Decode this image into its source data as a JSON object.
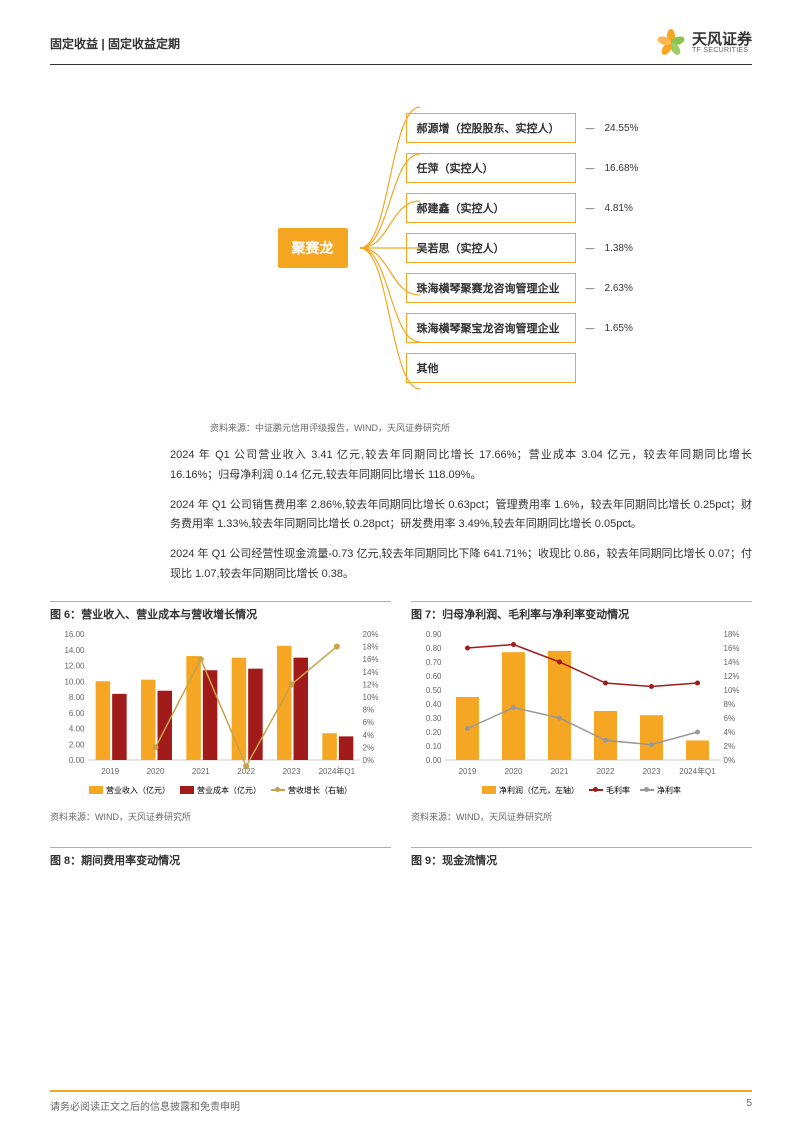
{
  "header": {
    "category": "固定收益 | 固定收益定期",
    "logo_cn": "天风证券",
    "logo_en": "TF SECURITIES"
  },
  "org": {
    "root": "聚赛龙",
    "nodes": [
      {
        "label": "郝源增（控股股东、实控人）",
        "pct": "24.55%"
      },
      {
        "label": "任萍（实控人）",
        "pct": "16.68%"
      },
      {
        "label": "郝建鑫（实控人）",
        "pct": "4.81%"
      },
      {
        "label": "吴若思（实控人）",
        "pct": "1.38%"
      },
      {
        "label": "珠海横琴聚赛龙咨询管理企业",
        "pct": "2.63%"
      },
      {
        "label": "珠海横琴聚宝龙咨询管理企业",
        "pct": "1.65%"
      },
      {
        "label": "其他",
        "pct": ""
      }
    ],
    "source": "资料来源：中证鹏元信用评级报告，WIND，天风证券研究所"
  },
  "paragraphs": {
    "p1": "2024 年 Q1 公司营业收入 3.41 亿元,较去年同期同比增长 17.66%；营业成本 3.04 亿元，较去年同期同比增长 16.16%；归母净利润 0.14 亿元,较去年同期同比增长 118.09%。",
    "p2": "2024 年 Q1 公司销售费用率 2.86%,较去年同期同比增长 0.63pct；管理费用率 1.6%，较去年同期同比增长 0.25pct；财务费用率 1.33%,较去年同期同比增长 0.28pct；研发费用率 3.49%,较去年同期同比增长 0.05pct。",
    "p3": "2024 年 Q1 公司经营性现金流量-0.73 亿元,较去年同期同比下降 641.71%；收现比 0.86，较去年同期同比增长 0.07；付现比 1.07,较去年同期同比增长 0.38。"
  },
  "chart6": {
    "title": "图 6：营业收入、营业成本与营收增长情况",
    "type": "bar+line",
    "categories": [
      "2019",
      "2020",
      "2021",
      "2022",
      "2023",
      "2024年Q1"
    ],
    "revenue": [
      10.0,
      10.2,
      13.2,
      13.0,
      14.5,
      3.4
    ],
    "cost": [
      8.4,
      8.8,
      11.4,
      11.6,
      13.0,
      3.0
    ],
    "growth_pct": [
      null,
      2,
      16,
      -1,
      12,
      18
    ],
    "left_ylim": [
      0,
      16
    ],
    "left_step": 2,
    "right_ylim": [
      0,
      20
    ],
    "right_step": 2,
    "colors": {
      "revenue": "#f5a623",
      "cost": "#a11b1b",
      "growth": "#c9a24a",
      "axis": "#999999"
    },
    "legend": {
      "rev": "营业收入（亿元）",
      "cost": "营业成本（亿元）",
      "growth": "营收增长（右轴）"
    },
    "source": "资料来源：WIND，天风证券研究所"
  },
  "chart7": {
    "title": "图 7：归母净利润、毛利率与净利率变动情况",
    "type": "bar+line",
    "categories": [
      "2019",
      "2020",
      "2021",
      "2022",
      "2023",
      "2024年Q1"
    ],
    "netprofit": [
      0.45,
      0.77,
      0.78,
      0.35,
      0.32,
      0.14
    ],
    "gross_margin_pct": [
      16,
      16.5,
      14,
      11,
      10.5,
      11
    ],
    "net_margin_pct": [
      4.5,
      7.5,
      6,
      2.8,
      2.2,
      4
    ],
    "left_ylim": [
      0,
      0.9
    ],
    "left_step": 0.1,
    "right_ylim": [
      0,
      18
    ],
    "right_step": 2,
    "colors": {
      "bar": "#f5a623",
      "gross": "#a11b1b",
      "net": "#999999",
      "axis": "#999999"
    },
    "legend": {
      "bar": "净利润（亿元，左轴）",
      "gross": "毛利率",
      "net": "净利率"
    },
    "source": "资料来源：WIND，天风证券研究所"
  },
  "chart8": {
    "title": "图 8：期间费用率变动情况"
  },
  "chart9": {
    "title": "图 9：现金流情况"
  },
  "footer": {
    "disclaimer": "请务必阅读正文之后的信息披露和免责申明",
    "page": "5"
  }
}
